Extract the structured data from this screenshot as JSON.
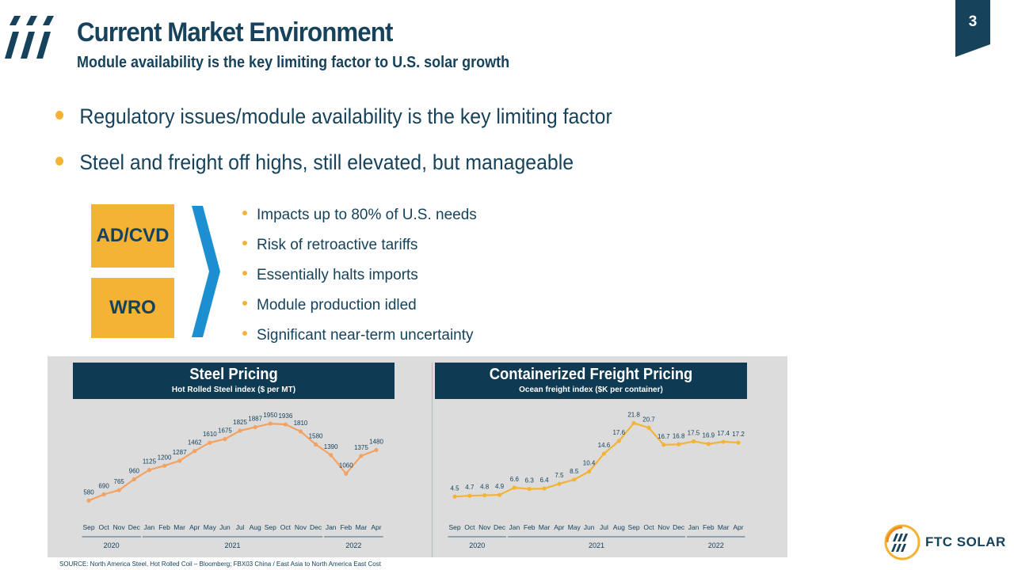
{
  "header": {
    "title": "Current Market Environment",
    "subtitle": "Module availability is the key limiting factor to U.S. solar growth",
    "page_number": "3"
  },
  "bullets": [
    "Regulatory issues/module availability is the key limiting factor",
    "Steel and freight off highs, still elevated, but manageable"
  ],
  "boxes": [
    "AD/CVD",
    "WRO"
  ],
  "sub_bullets": [
    "Impacts up to 80% of U.S. needs",
    "Risk of retroactive tariffs",
    "Essentially halts imports",
    "Module production idled",
    "Significant near-term uncertainty"
  ],
  "source": "SOURCE: North America Steel, Hot Rolled Coil – Bloomberg; FBX03 China / East Asia to North America East Cost",
  "brand": {
    "text": "FTC SOLAR"
  },
  "colors": {
    "navy": "#16425b",
    "header_navy": "#0e3a53",
    "accent": "#f5b335",
    "chevron": "#1b8fcf",
    "steel_line": "#f4a261"
  },
  "chart_data": [
    {
      "type": "line",
      "title": "Steel Pricing",
      "subtitle": "Hot Rolled Steel index ($ per MT)",
      "categories": [
        "Sep",
        "Oct",
        "Nov",
        "Dec",
        "Jan",
        "Feb",
        "Mar",
        "Apr",
        "May",
        "Jun",
        "Jul",
        "Aug",
        "Sep",
        "Oct",
        "Nov",
        "Dec",
        "Jan",
        "Feb",
        "Mar",
        "Apr"
      ],
      "values": [
        580,
        690,
        765,
        960,
        1125,
        1200,
        1287,
        1462,
        1610,
        1675,
        1825,
        1887,
        1950,
        1936,
        1810,
        1580,
        1390,
        1060,
        1375,
        1480
      ],
      "data_labels": [
        "580",
        "690",
        "765",
        "960",
        "1125",
        "1200",
        "1287",
        "1462",
        "1610",
        "1675",
        "1825",
        "1887",
        "1950",
        "1936",
        "1810",
        "1580",
        "1390",
        "1060",
        "1375",
        "1480"
      ],
      "year_groups": [
        {
          "label": "2020",
          "start": 0,
          "end": 3
        },
        {
          "label": "2021",
          "start": 4,
          "end": 15
        },
        {
          "label": "2022",
          "start": 16,
          "end": 19
        }
      ],
      "ylim": [
        500,
        2050
      ],
      "grid": false,
      "line_color": "#f4a261"
    },
    {
      "type": "line",
      "title": "Containerized Freight Pricing",
      "subtitle": "Ocean freight index ($K per container)",
      "categories": [
        "Sep",
        "Oct",
        "Nov",
        "Dec",
        "Jan",
        "Feb",
        "Mar",
        "Apr",
        "May",
        "Jun",
        "Jul",
        "Aug",
        "Sep",
        "Oct",
        "Nov",
        "Dec",
        "Jan",
        "Feb",
        "Mar",
        "Apr"
      ],
      "values": [
        4.5,
        4.7,
        4.8,
        4.9,
        6.6,
        6.3,
        6.4,
        7.5,
        8.5,
        10.4,
        14.6,
        17.6,
        21.8,
        20.7,
        16.7,
        16.8,
        17.5,
        16.9,
        17.4,
        17.2
      ],
      "data_labels": [
        "4.5",
        "4.7",
        "4.8",
        "4.9",
        "6.6",
        "6.3",
        "6.4",
        "7.5",
        "8.5",
        "10.4",
        "14.6",
        "17.6",
        "21.8",
        "20.7",
        "16.7",
        "16.8",
        "17.5",
        "16.9",
        "17.4",
        "17.2"
      ],
      "year_groups": [
        {
          "label": "2020",
          "start": 0,
          "end": 3
        },
        {
          "label": "2021",
          "start": 4,
          "end": 15
        },
        {
          "label": "2022",
          "start": 16,
          "end": 19
        }
      ],
      "ylim": [
        2.5,
        23
      ],
      "grid": false,
      "line_color": "#f5b335"
    }
  ]
}
